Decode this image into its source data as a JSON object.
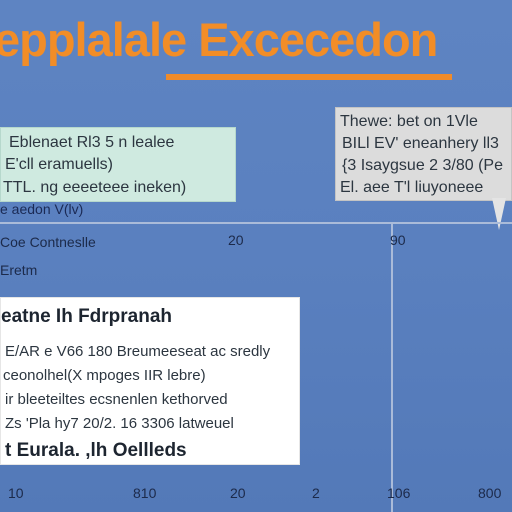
{
  "title": "epplalale Excecedon",
  "panel_green": {
    "lines": [
      "Eblenaet Rl3 5 n lealee",
      "E'cll eramuells)",
      "TTL. ng eeeeteee ineken)"
    ],
    "caption": "e aedon V(lv)"
  },
  "panel_gray": {
    "lines": [
      "Thewe: bet on 1Vle",
      "BILl EV' eneanhery ll3",
      "{3 Isaygsue 2 3/80 (Pe",
      "El. aee T'l liuyoneee"
    ]
  },
  "axis_row1": {
    "label": "Coe  Contneslle",
    "tick_a": "20",
    "tick_b": "90"
  },
  "axis_row2": {
    "label": "Eretm"
  },
  "panel_white": {
    "heading": "eatne Ih Fdrpranah",
    "lines": [
      "E/AR e V66 180 Breumeeseat ac sredly",
      "ceonolhel(X mpoges IIR lebre)",
      "ir bleeteiltes ecsnenlen kethorved",
      "Zs 'Pla hy7 20/2. 16 3306 latweuel"
    ],
    "footer": "t Eurala. ,lh Oellleds"
  },
  "bottom_axis": [
    "10",
    "810",
    "20",
    "2",
    "106",
    "800"
  ],
  "colors": {
    "background": "#5a80bf",
    "title": "#f28d27",
    "panel_green": "#cfeae0",
    "panel_gray": "#dcdcdc",
    "panel_white": "#ffffff",
    "gridline": "#aabbd9"
  }
}
